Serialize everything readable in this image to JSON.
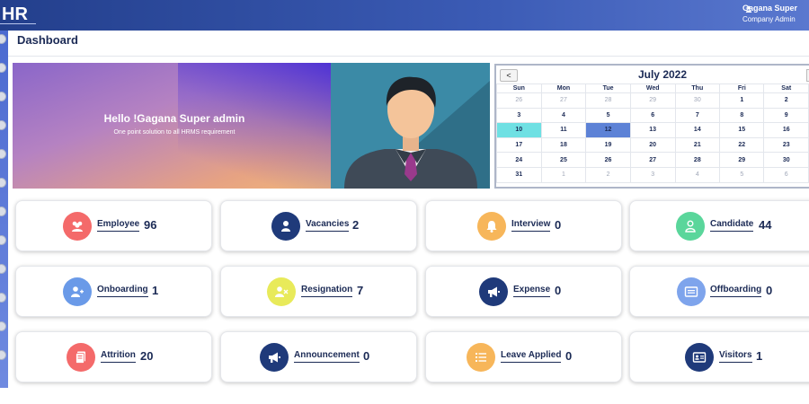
{
  "header": {
    "logo": "HR",
    "user_name": "Gagana Super",
    "user_role": "Company Admin"
  },
  "page": {
    "title": "Dashboard"
  },
  "banner": {
    "greeting": "Hello !Gagana Super admin",
    "tagline": "One point solution to all HRMS requirement"
  },
  "calendar": {
    "month_label": "July 2022",
    "prev_label": "<",
    "weekdays": [
      "Sun",
      "Mon",
      "Tue",
      "Wed",
      "Thu",
      "Fri",
      "Sat"
    ],
    "weeks": [
      [
        "26",
        "27",
        "28",
        "29",
        "30",
        "1",
        "2"
      ],
      [
        "3",
        "4",
        "5",
        "6",
        "7",
        "8",
        "9"
      ],
      [
        "10",
        "11",
        "12",
        "13",
        "14",
        "15",
        "16"
      ],
      [
        "17",
        "18",
        "19",
        "20",
        "21",
        "22",
        "23"
      ],
      [
        "24",
        "25",
        "26",
        "27",
        "28",
        "29",
        "30"
      ],
      [
        "31",
        "1",
        "2",
        "3",
        "4",
        "5",
        "6"
      ]
    ],
    "today": "10",
    "selected": "12"
  },
  "cards": [
    {
      "label": "Employee",
      "count": "96",
      "icon": "users-icon",
      "color": "#f46a6a"
    },
    {
      "label": "Vacancies",
      "count": "2",
      "icon": "user-icon",
      "color": "#1f3a7a"
    },
    {
      "label": "Interview",
      "count": "0",
      "icon": "bell-icon",
      "color": "#f7b65a"
    },
    {
      "label": "Candidate",
      "count": "44",
      "icon": "user-outline-icon",
      "color": "#5ad69b"
    },
    {
      "label": "Onboarding",
      "count": "1",
      "icon": "user-plus-icon",
      "color": "#6a9ae8"
    },
    {
      "label": "Resignation",
      "count": "7",
      "icon": "user-x-icon",
      "color": "#e8ea5a"
    },
    {
      "label": "Expense",
      "count": "0",
      "icon": "megaphone-icon",
      "color": "#1f3a7a"
    },
    {
      "label": "Offboarding",
      "count": "0",
      "icon": "id-card-icon",
      "color": "#7ea4ec"
    },
    {
      "label": "Attrition",
      "count": "20",
      "icon": "document-icon",
      "color": "#f46a6a"
    },
    {
      "label": "Announcement",
      "count": "0",
      "icon": "megaphone-icon",
      "color": "#1f3a7a"
    },
    {
      "label": "Leave Applied",
      "count": "0",
      "icon": "list-icon",
      "color": "#f7b65a"
    },
    {
      "label": "Visitors",
      "count": "1",
      "icon": "id-card-icon",
      "color": "#1f3a7a"
    }
  ]
}
